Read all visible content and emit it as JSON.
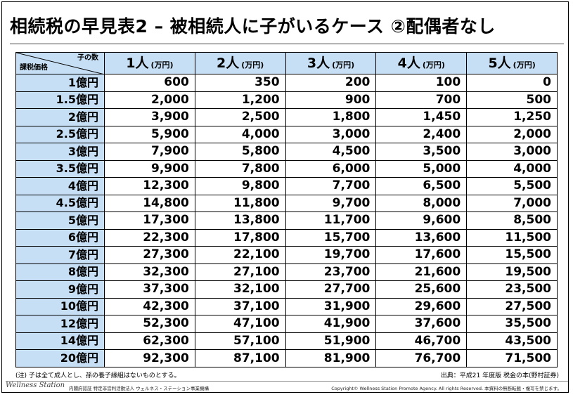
{
  "title": "相続税の早見表2 – 被相続人に子がいるケース ②配偶者なし",
  "table": {
    "corner_top": "子の数",
    "corner_bottom": "課税価格",
    "columns": [
      {
        "label": "1人",
        "unit": "(万円)"
      },
      {
        "label": "2人",
        "unit": "(万円)"
      },
      {
        "label": "3人",
        "unit": "(万円)"
      },
      {
        "label": "4人",
        "unit": "(万円)"
      },
      {
        "label": "5人",
        "unit": "(万円)"
      }
    ],
    "rows": [
      {
        "label": "1億円",
        "values": [
          "600",
          "350",
          "200",
          "100",
          "0"
        ]
      },
      {
        "label": "1.5億円",
        "values": [
          "2,000",
          "1,200",
          "900",
          "700",
          "500"
        ]
      },
      {
        "label": "2億円",
        "values": [
          "3,900",
          "2,500",
          "1,800",
          "1,450",
          "1,250"
        ]
      },
      {
        "label": "2.5億円",
        "values": [
          "5,900",
          "4,000",
          "3,000",
          "2,400",
          "2,000"
        ]
      },
      {
        "label": "3億円",
        "values": [
          "7,900",
          "5,800",
          "4,500",
          "3,500",
          "3,000"
        ]
      },
      {
        "label": "3.5億円",
        "values": [
          "9,900",
          "7,800",
          "6,000",
          "5,000",
          "4,000"
        ]
      },
      {
        "label": "4億円",
        "values": [
          "12,300",
          "9,800",
          "7,700",
          "6,500",
          "5,500"
        ]
      },
      {
        "label": "4.5億円",
        "values": [
          "14,800",
          "11,800",
          "9,700",
          "8,000",
          "7,000"
        ]
      },
      {
        "label": "5億円",
        "values": [
          "17,300",
          "13,800",
          "11,700",
          "9,600",
          "8,500"
        ]
      },
      {
        "label": "6億円",
        "values": [
          "22,300",
          "17,800",
          "15,700",
          "13,600",
          "11,500"
        ]
      },
      {
        "label": "7億円",
        "values": [
          "27,300",
          "22,100",
          "19,700",
          "17,600",
          "15,500"
        ]
      },
      {
        "label": "8億円",
        "values": [
          "32,300",
          "27,100",
          "23,700",
          "21,600",
          "19,500"
        ]
      },
      {
        "label": "9億円",
        "values": [
          "37,300",
          "32,100",
          "27,700",
          "25,600",
          "23,500"
        ]
      },
      {
        "label": "10億円",
        "values": [
          "42,300",
          "37,100",
          "31,900",
          "29,600",
          "27,500"
        ]
      },
      {
        "label": "12億円",
        "values": [
          "52,300",
          "47,100",
          "41,900",
          "37,600",
          "35,500"
        ]
      },
      {
        "label": "14億円",
        "values": [
          "62,300",
          "57,100",
          "51,900",
          "46,700",
          "43,500"
        ]
      },
      {
        "label": "20億円",
        "values": [
          "92,300",
          "87,100",
          "81,900",
          "76,700",
          "71,500"
        ]
      }
    ]
  },
  "note": "(注) 子は全て成人とし、孫の養子縁組はないものとする。",
  "source": "出典：平成21 年度版 税金の本(野村証券)",
  "footer": {
    "logo": "Wellness Station",
    "org": "内閣府認証 特定非営利活動法人 ウェルネス・ステーション事業機構",
    "copyright": "Copyright© Wellness Station Promote Agency. All rights Reserved. 本資料の無断転載・複写を禁じます。"
  },
  "colors": {
    "header_bg": "#c6dff4",
    "grid_line": "#000000"
  }
}
